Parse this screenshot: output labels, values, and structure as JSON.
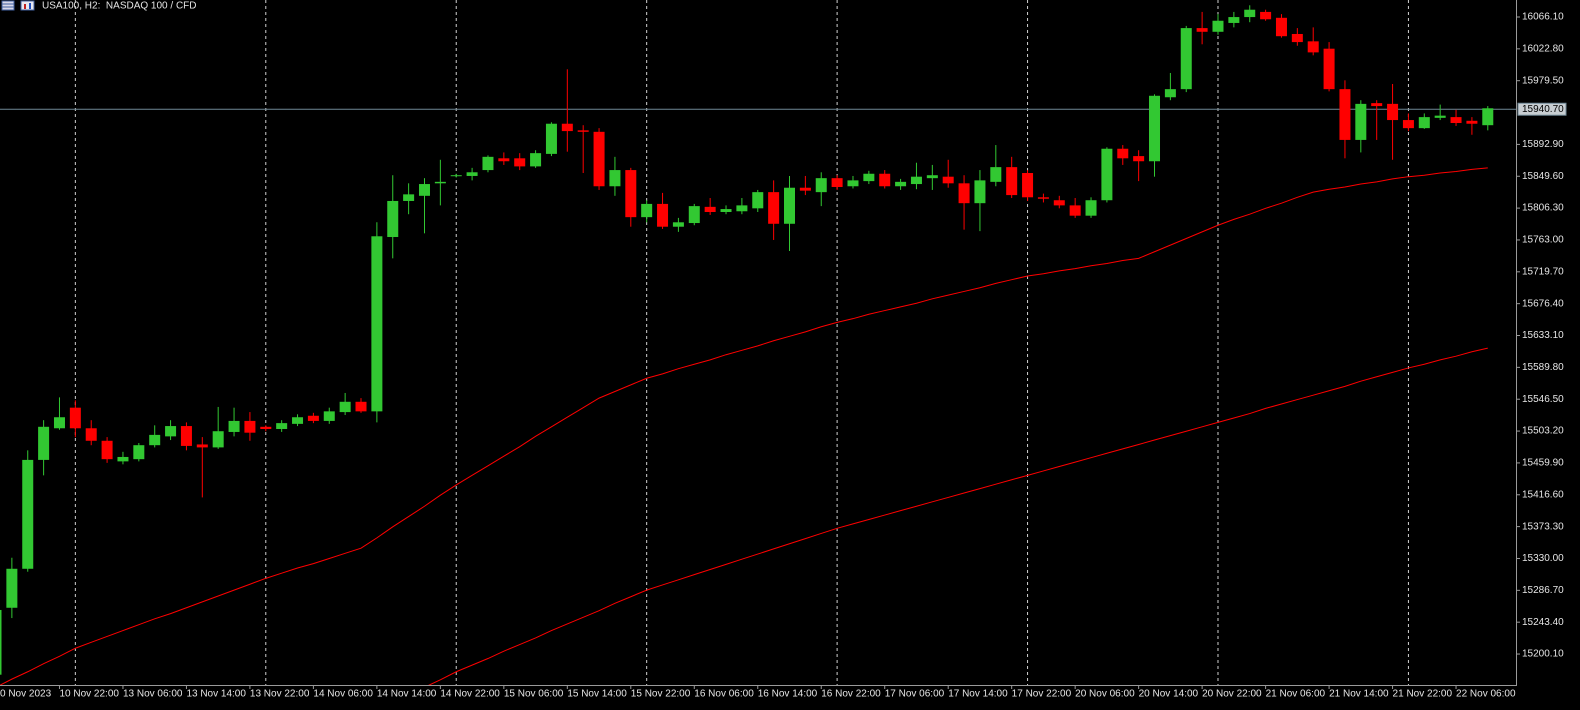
{
  "chart_data": {
    "type": "candlestick",
    "title": "USA100, H2:  NASDAQ 100 / CFD",
    "categories": [
      "0 Nov 2023",
      null,
      null,
      null,
      "10 Nov 22:00",
      null,
      null,
      null,
      "13 Nov 06:00",
      null,
      null,
      null,
      "13 Nov 14:00",
      null,
      null,
      null,
      "13 Nov 22:00",
      null,
      null,
      null,
      "14 Nov 06:00",
      null,
      null,
      null,
      "14 Nov 14:00",
      null,
      null,
      null,
      "14 Nov 22:00",
      null,
      null,
      null,
      "15 Nov 06:00",
      null,
      null,
      null,
      "15 Nov 14:00",
      null,
      null,
      null,
      "15 Nov 22:00",
      null,
      null,
      null,
      "16 Nov 06:00",
      null,
      null,
      null,
      "16 Nov 14:00",
      null,
      null,
      null,
      "16 Nov 22:00",
      null,
      null,
      null,
      "17 Nov 06:00",
      null,
      null,
      null,
      "17 Nov 14:00",
      null,
      null,
      null,
      "17 Nov 22:00",
      null,
      null,
      null,
      "20 Nov 06:00",
      null,
      null,
      null,
      "20 Nov 14:00",
      null,
      null,
      null,
      "20 Nov 22:00",
      null,
      null,
      null,
      "21 Nov 06:00",
      null,
      null,
      null,
      "21 Nov 14:00",
      null,
      null,
      null,
      "21 Nov 22:00",
      null,
      null,
      null,
      "22 Nov 06:00",
      null,
      null
    ],
    "open": [
      15172,
      15263,
      15316,
      15464,
      15507,
      15535,
      15507,
      15490,
      15462,
      15465,
      15484,
      15496,
      15510,
      15485,
      15481,
      15502,
      15517,
      15509,
      15506,
      15513,
      15524,
      15517,
      15529,
      15543,
      15530,
      15767,
      15816,
      15823,
      15840,
      15850,
      15850,
      15858,
      15874,
      15874,
      15863,
      15880,
      15921,
      15912,
      15910,
      15836,
      15858,
      15794,
      15812,
      15781,
      15786,
      15808,
      15801,
      15802,
      15806,
      15828,
      15785,
      15834,
      15828,
      15847,
      15836,
      15843,
      15853,
      15836,
      15839,
      15847,
      15849,
      15840,
      15813,
      15842,
      15862,
      15854,
      15821,
      15817,
      15810,
      15796,
      15817,
      15887,
      15877,
      15870,
      15957,
      15968,
      16051,
      16046,
      16058,
      16066,
      16073,
      16065,
      16043,
      16033,
      16023,
      15968,
      15899,
      15949,
      15948,
      15926,
      15915,
      15929,
      15930,
      15925,
      15919
    ],
    "high": [
      15270,
      15331,
      15477,
      15518,
      15549,
      15545,
      15518,
      15495,
      15475,
      15487,
      15511,
      15518,
      15515,
      15495,
      15536,
      15535,
      15529,
      15511,
      15518,
      15526,
      15528,
      15535,
      15555,
      15548,
      15787,
      15851,
      15840,
      15847,
      15872,
      15853,
      15861,
      15878,
      15882,
      15881,
      15885,
      15923,
      15995,
      15919,
      15915,
      15876,
      15861,
      15817,
      15827,
      15793,
      15812,
      15820,
      15810,
      15820,
      15831,
      15844,
      15850,
      15850,
      15855,
      15851,
      15850,
      15857,
      15858,
      15846,
      15868,
      15865,
      15872,
      15851,
      15858,
      15892,
      15876,
      15858,
      15826,
      15823,
      15820,
      15821,
      15889,
      15892,
      15885,
      15961,
      15990,
      16054,
      16073,
      16070,
      16073,
      16082,
      16076,
      16070,
      16051,
      16052,
      16032,
      15980,
      15953,
      15953,
      15975,
      15935,
      15935,
      15947,
      15940,
      15930,
      15945
    ],
    "low": [
      15160,
      15249,
      15312,
      15443,
      15505,
      15495,
      15484,
      15460,
      15458,
      15462,
      15481,
      15491,
      15477,
      15413,
      15479,
      15496,
      15490,
      15503,
      15502,
      15510,
      15514,
      15513,
      15525,
      15528,
      15515,
      15738,
      15798,
      15772,
      15810,
      15848,
      15844,
      15855,
      15865,
      15858,
      15861,
      15877,
      15883,
      15854,
      15831,
      15823,
      15781,
      15787,
      15778,
      15774,
      15783,
      15797,
      15798,
      15798,
      15801,
      15763,
      15748,
      15824,
      15809,
      15831,
      15833,
      15839,
      15833,
      15831,
      15832,
      15831,
      15834,
      15777,
      15775,
      15836,
      15820,
      15816,
      15814,
      15806,
      15793,
      15793,
      15814,
      15865,
      15843,
      15849,
      15953,
      15964,
      16029,
      16042,
      16052,
      16059,
      16061,
      16038,
      16027,
      16014,
      15965,
      15874,
      15882,
      15899,
      15872,
      15911,
      15914,
      15926,
      15918,
      15906,
      15912
    ],
    "close": [
      15260,
      15316,
      15464,
      15509,
      15522,
      15507,
      15490,
      15465,
      15468,
      15484,
      15498,
      15510,
      15483,
      15481,
      15503,
      15517,
      15501,
      15506,
      15514,
      15522,
      15517,
      15530,
      15543,
      15530,
      15768,
      15816,
      15825,
      15839,
      15842,
      15851,
      15855,
      15876,
      15870,
      15863,
      15881,
      15921,
      15911,
      15910,
      15836,
      15858,
      15794,
      15812,
      15781,
      15787,
      15809,
      15801,
      15805,
      15810,
      15828,
      15785,
      15834,
      15830,
      15847,
      15835,
      15844,
      15853,
      15836,
      15842,
      15849,
      15851,
      15840,
      15813,
      15844,
      15862,
      15824,
      15821,
      15819,
      15810,
      15796,
      15817,
      15887,
      15874,
      15870,
      15959,
      15968,
      16051,
      16046,
      16061,
      16066,
      16076,
      16063,
      16040,
      16032,
      16018,
      15968,
      15899,
      15948,
      15945,
      15926,
      15915,
      15930,
      15932,
      15922,
      15921,
      15942
    ],
    "up_color": "#32c832",
    "down_color": "#ff0000",
    "overlays": [
      {
        "color": "#ff0000",
        "values": [
          15155,
          15166,
          15176,
          15187,
          15197,
          15208,
          15216,
          15224,
          15232,
          15240,
          15248,
          15255,
          15263,
          15271,
          15279,
          15287,
          15295,
          15303,
          15310,
          15317,
          15323,
          15330,
          15337,
          15344,
          15358,
          15373,
          15387,
          15401,
          15416,
          15430,
          15443,
          15456,
          15469,
          15482,
          15496,
          15509,
          15522,
          15535,
          15548,
          15557,
          15566,
          15575,
          15581,
          15588,
          15594,
          15600,
          15607,
          15613,
          15619,
          15626,
          15632,
          15638,
          15645,
          15651,
          15656,
          15662,
          15667,
          15672,
          15677,
          15683,
          15688,
          15693,
          15698,
          15704,
          15709,
          15714,
          15717,
          15721,
          15724,
          15728,
          15731,
          15735,
          15738,
          15747,
          15756,
          15765,
          15774,
          15783,
          15791,
          15798,
          15806,
          15813,
          15821,
          15828,
          15832,
          15835,
          15839,
          15842,
          15846,
          15849,
          15851,
          15854,
          15856,
          15859,
          15861
        ]
      },
      {
        "color": "#ff0000",
        "values": [
          null,
          null,
          null,
          null,
          null,
          null,
          null,
          null,
          null,
          null,
          null,
          null,
          null,
          null,
          null,
          null,
          null,
          null,
          null,
          null,
          null,
          null,
          null,
          null,
          null,
          null,
          null,
          15155,
          15165,
          15176,
          15185,
          15194,
          15204,
          15213,
          15222,
          15232,
          15241,
          15250,
          15259,
          15269,
          15278,
          15287,
          15294,
          15301,
          15308,
          15315,
          15322,
          15329,
          15336,
          15343,
          15350,
          15357,
          15364,
          15371,
          15377,
          15383,
          15389,
          15395,
          15401,
          15407,
          15413,
          15419,
          15425,
          15431,
          15437,
          15443,
          15449,
          15455,
          15461,
          15467,
          15473,
          15479,
          15485,
          15491,
          15497,
          15503,
          15509,
          15515,
          15521,
          15527,
          15534,
          15540,
          15546,
          15552,
          15558,
          15564,
          15571,
          15577,
          15583,
          15589,
          15594,
          15600,
          15605,
          15611,
          15616
        ]
      }
    ],
    "ylim": [
      15158,
      16089.2
    ],
    "yticks": [
      {
        "value": 15200.1,
        "label": "15200.10"
      },
      {
        "value": 15243.4,
        "label": "15243.40"
      },
      {
        "value": 15286.7,
        "label": "15286.70"
      },
      {
        "value": 15330,
        "label": "15330.00"
      },
      {
        "value": 15373.3,
        "label": "15373.30"
      },
      {
        "value": 15416.6,
        "label": "15416.60"
      },
      {
        "value": 15459.9,
        "label": "15459.90"
      },
      {
        "value": 15503.2,
        "label": "15503.20"
      },
      {
        "value": 15546.5,
        "label": "15546.50"
      },
      {
        "value": 15589.8,
        "label": "15589.80"
      },
      {
        "value": 15633.1,
        "label": "15633.10"
      },
      {
        "value": 15676.4,
        "label": "15676.40"
      },
      {
        "value": 15719.7,
        "label": "15719.70"
      },
      {
        "value": 15763,
        "label": "15763.00"
      },
      {
        "value": 15806.3,
        "label": "15806.30"
      },
      {
        "value": 15849.6,
        "label": "15849.60"
      },
      {
        "value": 15892.9,
        "label": "15892.90"
      },
      {
        "value": 15979.5,
        "label": "15979.50"
      },
      {
        "value": 16022.8,
        "label": "16022.80"
      },
      {
        "value": 16066.1,
        "label": "16066.10"
      }
    ],
    "last_price": {
      "value": 15940.7,
      "label": "15940.70"
    },
    "last_price_color": "#6f8796"
  }
}
